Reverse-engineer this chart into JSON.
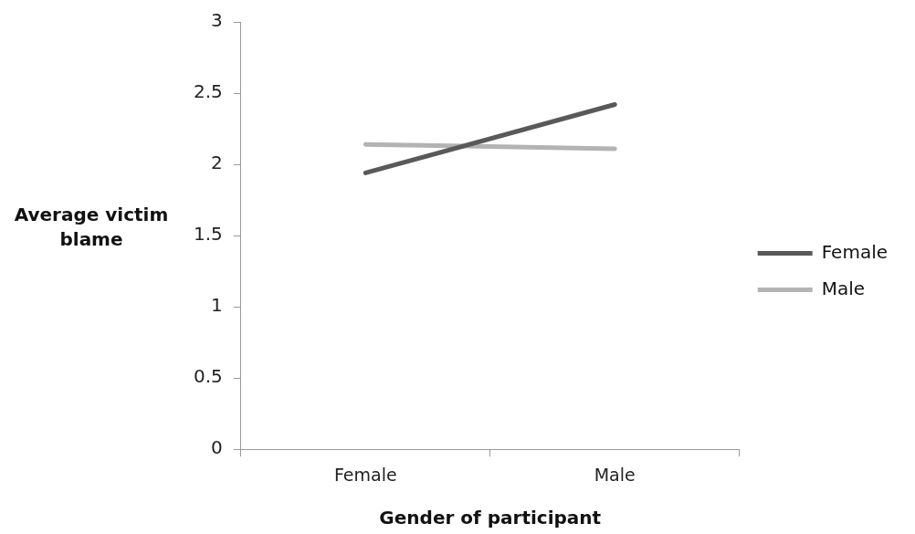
{
  "chart_data": {
    "type": "line",
    "xlabel": "Gender of participant",
    "ylabel": "Average victim blame",
    "categories": [
      "Female",
      "Male"
    ],
    "series": [
      {
        "name": "Female",
        "color": "#595959",
        "values": [
          1.94,
          2.42
        ]
      },
      {
        "name": "Male",
        "color": "#b3b3b3",
        "values": [
          2.14,
          2.11
        ]
      }
    ],
    "ylim": [
      0,
      3
    ],
    "yticks": [
      0,
      0.5,
      1,
      1.5,
      2,
      2.5,
      3
    ],
    "grid": false,
    "legend": "right",
    "marker": "none",
    "line_style": "solid"
  }
}
